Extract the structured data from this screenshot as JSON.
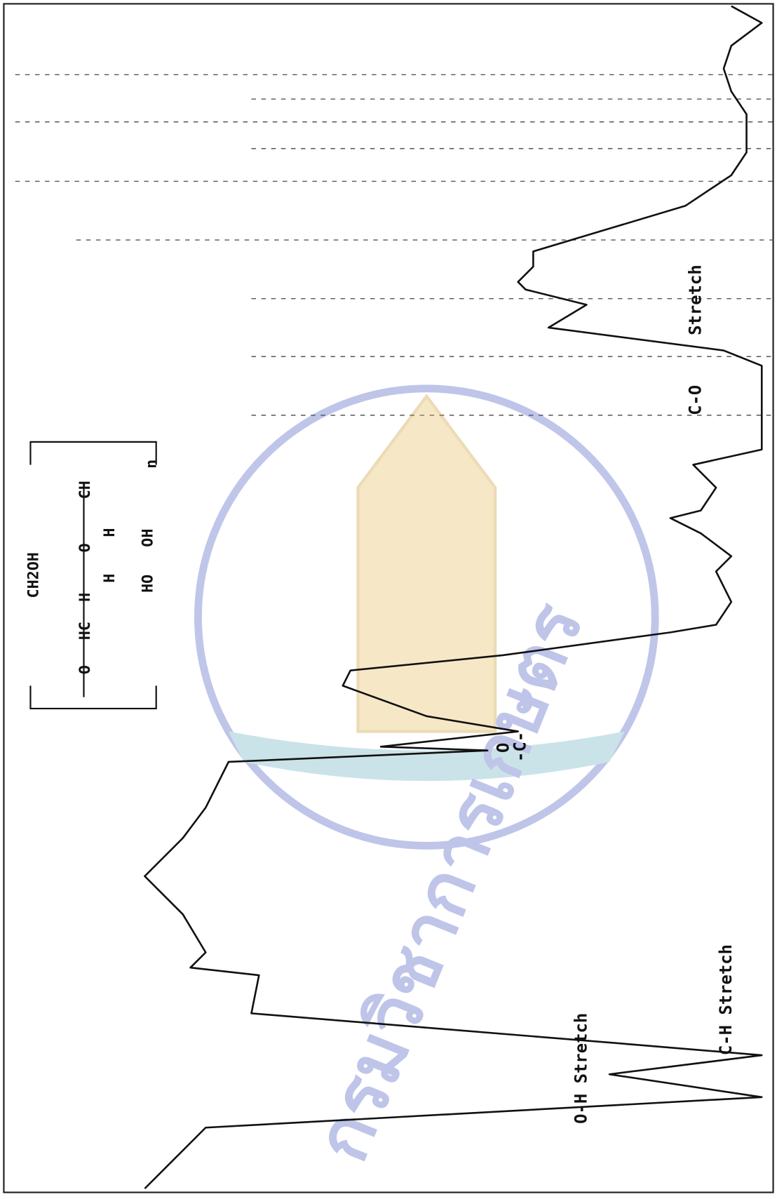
{
  "annotations": {
    "oh_stretch": "O-H Stretch",
    "ch_stretch": "C-H Stretch",
    "co_bond": "C-O",
    "co_stretch": "Stretch",
    "carbonyl": "-C-",
    "carbonyl_o": "O"
  },
  "structure": {
    "ch2oh": "CH2OH",
    "ring_o": "O",
    "ch": "CH",
    "hc": "HC",
    "left_o": "O",
    "h_left": "H",
    "h_mid": "H",
    "h_right": "H",
    "ho": "HO",
    "oh": "OH",
    "n": "n"
  },
  "watermark": "กรมวิชาการเกษตร"
}
